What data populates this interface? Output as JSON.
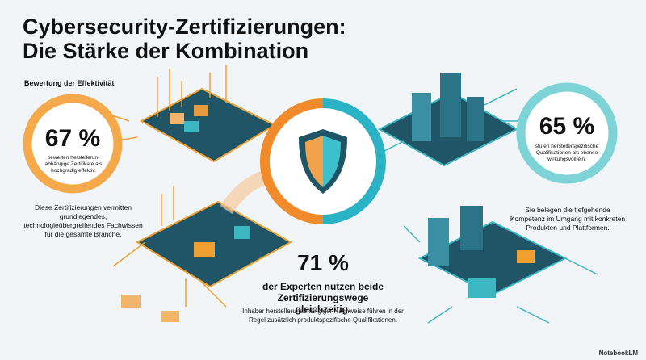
{
  "title_lines": [
    "Cybersecurity-Zertifizierungen:",
    "Die Stärke der Kombination"
  ],
  "section_label": "Bewertung der Effektivität",
  "stats": [
    {
      "value": "67 %",
      "caption": "bewerten herstellerun-abhängige Zertifikate als hochgradig effektiv.",
      "description": "Diese Zertifizierungen vermitten grundlegendes, technologieübergreifendes Fachwissen für die gesamte Branche."
    },
    {
      "value": "65 %",
      "caption": "stufen herstellerspezifische Qualifikationen als ebenso wirkungsvoll ein.",
      "description": "Sie belegen die tiefgehende Kompetenz im Umgang mit konkreten Produkten und Plattformen."
    },
    {
      "value": "71 %",
      "caption": "der Experten nutzen beide Zertifizierungswege gleichzeitig.",
      "description": "Inhaber herstellerunabhängiger Nachweise führen in der Regel zusätzlich produktspezifische Qualifikationen."
    }
  ],
  "footer": "NotebookLM"
}
